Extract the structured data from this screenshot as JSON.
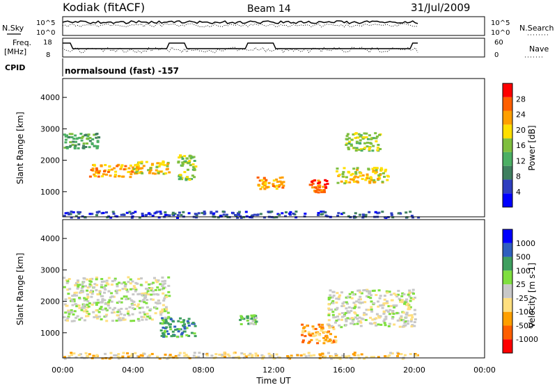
{
  "header": {
    "station": "Kodiak (fitACF)",
    "beam": "Beam 14",
    "date": "31/Jul/2009"
  },
  "top_panels": {
    "nsky_label": "N.Sky",
    "nsky_ticks": [
      "10^5",
      "10^0"
    ],
    "nsearch_label": "N.Search",
    "nsearch_ticks": [
      "10^5",
      "10^0"
    ],
    "freq_label_line1": "Freq.",
    "freq_label_line2": "[MHz]",
    "freq_ticks": [
      "18",
      "8"
    ],
    "nave_label": "Nave",
    "nave_ticks": [
      "60",
      "0"
    ],
    "cpid_label": "CPID",
    "cpid_text": "normalsound (fast) -157"
  },
  "colors": {
    "power_scale": [
      "#0000ff",
      "#2f3fbf",
      "#3f7f5f",
      "#4caf64",
      "#7fbf3f",
      "#ffdf00",
      "#ff9f00",
      "#ff5f00",
      "#ff0000"
    ],
    "velocity_scale": [
      "#ff0000",
      "#ff5f00",
      "#ff9f00",
      "#ffdf7f",
      "#c8c8c8",
      "#7fdf3f",
      "#3f9f5f",
      "#2f5fbf",
      "#0000ff"
    ]
  },
  "chart_data": [
    {
      "type": "heatmap",
      "name": "power-panel",
      "ylabel": "Slant Range [km]",
      "yticks": [
        "1000",
        "2000",
        "3000",
        "4000"
      ],
      "ylim": [
        200,
        4600
      ],
      "xlim": [
        0,
        24
      ],
      "colorbar_label": "Power [dB]",
      "colorbar_ticks": [
        "28",
        "24",
        "20",
        "16",
        "12",
        "8",
        "4"
      ],
      "features": [
        {
          "t0": 0.0,
          "t1": 2.0,
          "r0": 2400,
          "r1": 2900,
          "level": 3
        },
        {
          "t0": 1.5,
          "t1": 4.5,
          "r0": 1500,
          "r1": 1900,
          "level": 6
        },
        {
          "t0": 4.0,
          "t1": 6.0,
          "r0": 1600,
          "r1": 2000,
          "level": 5
        },
        {
          "t0": 6.5,
          "t1": 7.5,
          "r0": 1400,
          "r1": 2200,
          "level": 4
        },
        {
          "t0": 11.0,
          "t1": 12.5,
          "r0": 1100,
          "r1": 1500,
          "level": 6
        },
        {
          "t0": 14.0,
          "t1": 15.0,
          "r0": 1000,
          "r1": 1400,
          "level": 7
        },
        {
          "t0": 15.5,
          "t1": 18.5,
          "r0": 1300,
          "r1": 1800,
          "level": 5
        },
        {
          "t0": 16.0,
          "t1": 18.0,
          "r0": 2300,
          "r1": 2900,
          "level": 4
        },
        {
          "t0": 0.0,
          "t1": 20.2,
          "r0": 200,
          "r1": 400,
          "level": 1
        }
      ]
    },
    {
      "type": "heatmap",
      "name": "velocity-panel",
      "ylabel": "Slant Range [km]",
      "yticks": [
        "1000",
        "2000",
        "3000",
        "4000"
      ],
      "ylim": [
        200,
        4600
      ],
      "xlim": [
        0,
        24
      ],
      "xlabel": "Time UT",
      "xticks": [
        "00:00",
        "04:00",
        "08:00",
        "12:00",
        "16:00",
        "20:00",
        "00:00"
      ],
      "colorbar_label": "Velocity [m s-1]",
      "colorbar_ticks": [
        "1000",
        "500",
        "100",
        "25",
        "-25",
        "-100",
        "-500",
        "-1000"
      ],
      "features": [
        {
          "t0": 0.0,
          "t1": 6.0,
          "r0": 1400,
          "r1": 2800,
          "level": 4
        },
        {
          "t0": 5.5,
          "t1": 7.5,
          "r0": 900,
          "r1": 1500,
          "level": 6
        },
        {
          "t0": 10.0,
          "t1": 11.0,
          "r0": 1300,
          "r1": 1600,
          "level": 5
        },
        {
          "t0": 13.5,
          "t1": 15.5,
          "r0": 700,
          "r1": 1300,
          "level": 2
        },
        {
          "t0": 15.0,
          "t1": 20.0,
          "r0": 1200,
          "r1": 2400,
          "level": 4
        },
        {
          "t0": 0.0,
          "t1": 20.2,
          "r0": 200,
          "r1": 400,
          "level": 3
        }
      ]
    }
  ]
}
